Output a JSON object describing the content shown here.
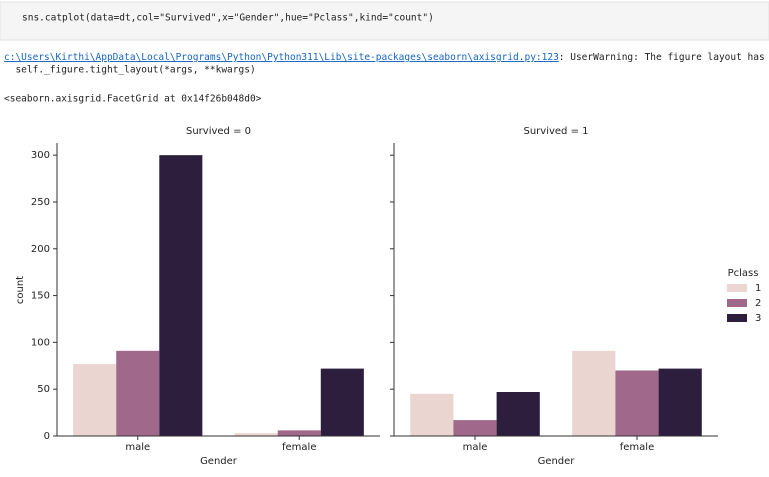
{
  "cell": {
    "code": "sns.catplot(data=dt,col=\"Survived\",x=\"Gender\",hue=\"Pclass\",kind=\"count\")"
  },
  "warning": {
    "link": "c:\\Users\\Kirthi\\AppData\\Local\\Programs\\Python\\Python311\\Lib\\site-packages\\seaborn\\axisgrid.py:123",
    "message": ": UserWarning: The figure layout has char",
    "line2": "  self._figure.tight_layout(*args, **kwargs)"
  },
  "output": "<seaborn.axisgrid.FacetGrid at 0x14f26b048d0>",
  "chart_data": [
    {
      "type": "bar",
      "title": "Survived = 0",
      "xlabel": "Gender",
      "ylabel": "count",
      "categories": [
        "male",
        "female"
      ],
      "series": [
        {
          "color": "#ebd5d0",
          "values": [
            77,
            3
          ]
        },
        {
          "color": "#a0698c",
          "values": [
            91,
            6
          ]
        },
        {
          "color": "#2d1e3e",
          "values": [
            300,
            72
          ]
        }
      ],
      "ylim": [
        0,
        313
      ],
      "yticks": [
        0,
        50,
        100,
        150,
        200,
        250,
        300
      ]
    },
    {
      "type": "bar",
      "title": "Survived = 1",
      "xlabel": "Gender",
      "legend_title": "Pclass",
      "categories": [
        "male",
        "female"
      ],
      "series": [
        {
          "name": "1",
          "color": "#ebd5d0",
          "values": [
            45,
            91
          ]
        },
        {
          "name": "2",
          "color": "#a0698c",
          "values": [
            17,
            70
          ]
        },
        {
          "name": "3",
          "color": "#2d1e3e",
          "values": [
            47,
            72
          ]
        }
      ],
      "ylim": [
        0,
        313
      ],
      "yticks": [
        0,
        50,
        100,
        150,
        200,
        250,
        300
      ]
    }
  ]
}
